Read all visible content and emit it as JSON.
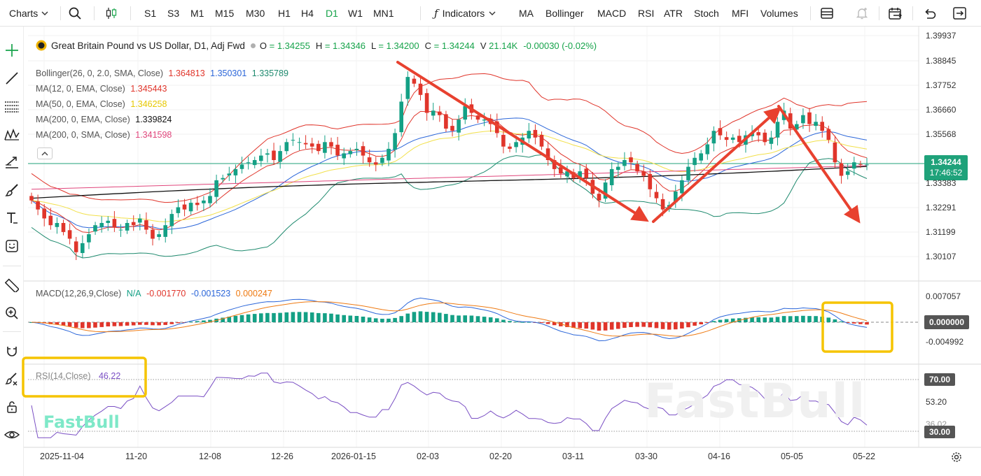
{
  "toolbar": {
    "charts_label": "Charts",
    "timeframes": [
      "S1",
      "S3",
      "M1",
      "M15",
      "M30",
      "H1",
      "H4",
      "D1",
      "W1",
      "MN1"
    ],
    "active_timeframe": "D1",
    "indicators_label": "Indicators",
    "indicator_shortcuts": [
      "MA",
      "Bollinger",
      "MACD",
      "RSI",
      "ATR",
      "Stoch",
      "MFI",
      "Volumes"
    ]
  },
  "title": {
    "symbol": "Great Britain Pound vs US Dollar, D1, Adj Fwd",
    "o_label": "O",
    "o_value": "= 1.34255",
    "h_label": "H",
    "h_value": "= 1.34346",
    "l_label": "L",
    "l_value": "= 1.34200",
    "c_label": "C",
    "c_value": "= 1.34244",
    "v_label": "V",
    "v_value": "21.14K",
    "change": "-0.00030 (-0.02%)"
  },
  "legend": [
    {
      "label": "Bollinger(26, 0, 2.0, SMA, Close)",
      "values": [
        {
          "v": "1.364813",
          "color": "#e0352b"
        },
        {
          "v": "1.350301",
          "color": "#2b66d9"
        },
        {
          "v": "1.335789",
          "color": "#1e8a6e"
        }
      ]
    },
    {
      "label": "MA(12, 0, EMA, Close)",
      "values": [
        {
          "v": "1.345443",
          "color": "#e0352b"
        }
      ]
    },
    {
      "label": "MA(50, 0, EMA, Close)",
      "values": [
        {
          "v": "1.346258",
          "color": "#e6c800"
        }
      ]
    },
    {
      "label": "MA(200, 0, EMA, Close)",
      "values": [
        {
          "v": "1.339824",
          "color": "#111111"
        }
      ]
    },
    {
      "label": "MA(200, 0, SMA, Close)",
      "values": [
        {
          "v": "1.341598",
          "color": "#e0457b"
        }
      ]
    }
  ],
  "price_axis": [
    "1.39937",
    "1.38845",
    "1.37752",
    "1.36660",
    "1.35568",
    "1.34244",
    "17:46:52",
    "1.33383",
    "1.32291",
    "1.31199",
    "1.30107"
  ],
  "macd": {
    "label": "MACD(12,26,9,Close)",
    "na": "N/A",
    "v1": "-0.001770",
    "v2": "-0.001523",
    "v3": "0.000247",
    "axis": [
      "0.007057",
      "0.000000",
      "-0.004992"
    ]
  },
  "rsi": {
    "label": "RSI(14,Close)",
    "value": "46.22",
    "axis": [
      "70.00",
      "53.20",
      "30.00"
    ],
    "partial_tick": "36.02"
  },
  "dates": [
    "2025-11-04",
    "11-20",
    "12-08",
    "12-26",
    "2026-01-15",
    "02-03",
    "02-20",
    "03-11",
    "03-30",
    "04-16",
    "05-05",
    "05-22"
  ],
  "watermark": "FastBull",
  "colors": {
    "up": "#14a085",
    "down": "#e0352b",
    "accent": "#16a34a",
    "highlight": "#f5c400"
  },
  "chart_data": {
    "type": "candlestick",
    "symbol": "GBPUSD",
    "timeframe": "D1",
    "price_range": [
      1.30107,
      1.39937
    ],
    "closes": [
      1.326,
      1.322,
      1.318,
      1.315,
      1.316,
      1.312,
      1.309,
      1.303,
      1.307,
      1.311,
      1.315,
      1.316,
      1.317,
      1.314,
      1.313,
      1.316,
      1.315,
      1.318,
      1.313,
      1.309,
      1.311,
      1.315,
      1.32,
      1.323,
      1.322,
      1.325,
      1.324,
      1.326,
      1.328,
      1.335,
      1.336,
      1.338,
      1.34,
      1.342,
      1.343,
      1.344,
      1.346,
      1.347,
      1.344,
      1.348,
      1.352,
      1.353,
      1.352,
      1.351,
      1.35,
      1.348,
      1.352,
      1.35,
      1.346,
      1.347,
      1.348,
      1.349,
      1.346,
      1.343,
      1.342,
      1.345,
      1.349,
      1.356,
      1.37,
      1.381,
      1.378,
      1.373,
      1.365,
      1.366,
      1.364,
      1.358,
      1.357,
      1.362,
      1.368,
      1.365,
      1.362,
      1.362,
      1.36,
      1.356,
      1.35,
      1.349,
      1.352,
      1.354,
      1.357,
      1.354,
      1.35,
      1.344,
      1.34,
      1.338,
      1.339,
      1.336,
      1.339,
      1.336,
      1.329,
      1.326,
      1.334,
      1.34,
      1.341,
      1.344,
      1.343,
      1.339,
      1.337,
      1.331,
      1.327,
      1.322,
      1.324,
      1.33,
      1.335,
      1.341,
      1.345,
      1.347,
      1.351,
      1.357,
      1.355,
      1.353,
      1.354,
      1.352,
      1.355,
      1.356,
      1.355,
      1.352,
      1.354,
      1.361,
      1.366,
      1.358,
      1.36,
      1.364,
      1.36,
      1.361,
      1.357,
      1.353,
      1.343,
      1.337,
      1.339,
      1.343,
      1.342,
      1.342
    ]
  }
}
